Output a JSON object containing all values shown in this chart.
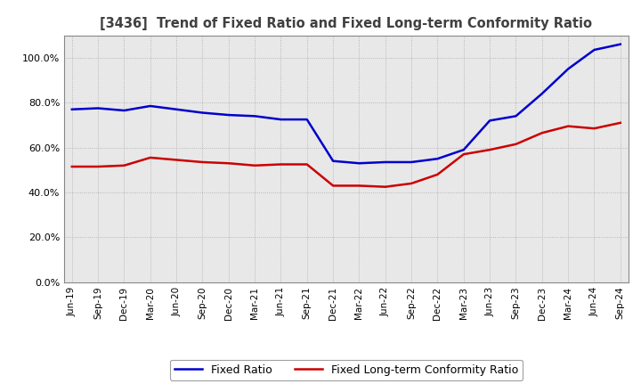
{
  "title": "[3436]  Trend of Fixed Ratio and Fixed Long-term Conformity Ratio",
  "title_color": "#404040",
  "background_color": "#ffffff",
  "plot_background": "#e8e8e8",
  "grid_color": "#999999",
  "xlabels": [
    "Jun-19",
    "Sep-19",
    "Dec-19",
    "Mar-20",
    "Jun-20",
    "Sep-20",
    "Dec-20",
    "Mar-21",
    "Jun-21",
    "Sep-21",
    "Dec-21",
    "Mar-22",
    "Jun-22",
    "Sep-22",
    "Dec-22",
    "Mar-23",
    "Jun-23",
    "Sep-23",
    "Dec-23",
    "Mar-24",
    "Jun-24",
    "Sep-24"
  ],
  "fixed_ratio": [
    77.0,
    77.5,
    76.5,
    78.5,
    77.0,
    75.5,
    74.5,
    74.0,
    72.5,
    72.5,
    54.0,
    53.0,
    53.5,
    53.5,
    55.0,
    59.0,
    72.0,
    74.0,
    84.0,
    95.0,
    103.5,
    106.0
  ],
  "fixed_lt_ratio": [
    51.5,
    51.5,
    52.0,
    55.5,
    54.5,
    53.5,
    53.0,
    52.0,
    52.5,
    52.5,
    43.0,
    43.0,
    42.5,
    44.0,
    48.0,
    57.0,
    59.0,
    61.5,
    66.5,
    69.5,
    68.5,
    71.0
  ],
  "fixed_ratio_color": "#0000cc",
  "fixed_lt_ratio_color": "#cc0000",
  "ylim": [
    0,
    110
  ],
  "yticks": [
    0,
    20,
    40,
    60,
    80,
    100
  ],
  "legend_fixed": "Fixed Ratio",
  "legend_lt": "Fixed Long-term Conformity Ratio"
}
